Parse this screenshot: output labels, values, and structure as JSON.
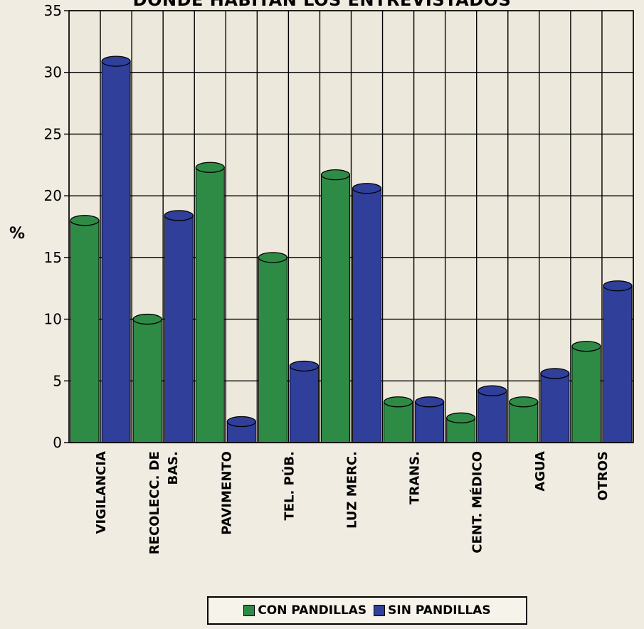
{
  "chart_data": {
    "type": "bar",
    "title": "DONDE HABITAN LOS ENTREVISTADOS",
    "ylabel": "%",
    "xlabel": "",
    "ylim": [
      0,
      35
    ],
    "yticks": [
      "0",
      "5",
      "10",
      "15",
      "20",
      "25",
      "30",
      "35"
    ],
    "grid": true,
    "legend_placement": "bottom",
    "categories": [
      "VIGILANCIA",
      "RECOLECC. DE BAS.",
      "PAVIMENTO",
      "TEL. PÚB.",
      "LUZ MERC.",
      "TRANS.",
      "CENT. MÉDICO",
      "AGUA",
      "OTROS"
    ],
    "series": [
      {
        "name": "CON PANDILLAS",
        "color": "#2e8b46",
        "values": [
          18,
          10,
          22.3,
          15,
          21.7,
          3.3,
          2,
          3.3,
          7.8
        ]
      },
      {
        "name": "SIN PANDILLAS",
        "color": "#2f3f9a",
        "values": [
          30.9,
          18.4,
          1.7,
          6.2,
          20.6,
          3.3,
          4.2,
          5.6,
          12.7
        ]
      }
    ]
  }
}
